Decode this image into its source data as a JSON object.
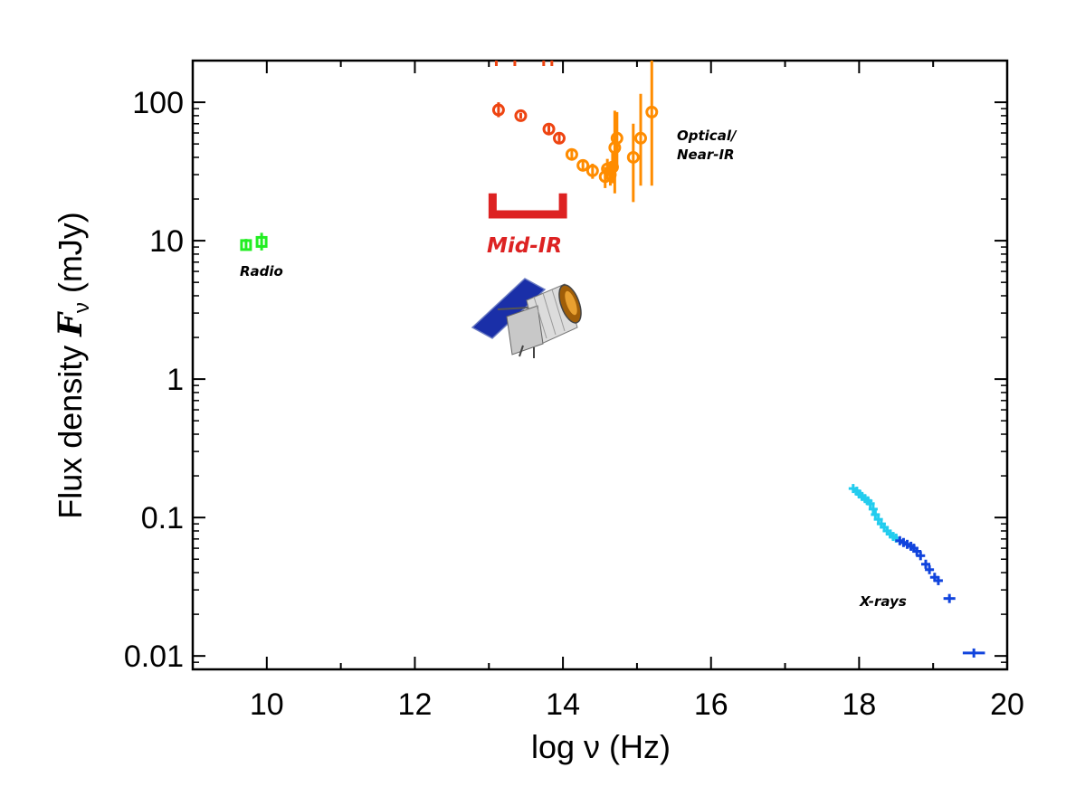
{
  "chart_data": {
    "type": "scatter",
    "x_label": "log ν (Hz)",
    "y_label_prefix": "Flux  density ",
    "y_label_symbol": "F",
    "y_label_sub": "ν",
    "y_label_suffix": " (mJy)",
    "x_scale": "linear",
    "y_scale": "log",
    "xlim": [
      9,
      20
    ],
    "ylim": [
      0.008,
      200
    ],
    "x_ticks": [
      10,
      12,
      14,
      16,
      18,
      20
    ],
    "x_tick_labels": [
      "10",
      "12",
      "14",
      "16",
      "18",
      "20"
    ],
    "y_ticks": [
      0.01,
      0.1,
      1,
      10,
      100
    ],
    "y_tick_labels": [
      "0.01",
      "0.1",
      "1",
      "10",
      "100"
    ],
    "grid": false,
    "legend": "none",
    "annotations": {
      "radio": "Radio",
      "optical_line1": "Optical/",
      "optical_line2": "Near-IR",
      "mid_ir": "Mid-IR",
      "xrays": "X-rays"
    },
    "colors": {
      "radio": "#22ee22",
      "optical_red": "#ee4411",
      "optical_orange": "#ff8c00",
      "mid_ir": "#dd2222",
      "xray_light": "#22ccee",
      "xray_dark": "#1144dd"
    },
    "mid_ir_range": {
      "x_start": 13.05,
      "x_end": 14.0,
      "y": 15.5,
      "y_top": 22
    },
    "series": [
      {
        "marker": "square",
        "color_key": "radio",
        "points": [
          {
            "x": 9.72,
            "y": 9.3,
            "yerr_lo": 0.8,
            "yerr_hi": 1.0
          },
          {
            "x": 9.93,
            "y": 9.8,
            "yerr_lo": 1.3,
            "yerr_hi": 1.6
          }
        ]
      },
      {
        "marker": "circle",
        "color_key": "optical_red",
        "points": [
          {
            "x": 13.13,
            "y": 88,
            "yerr_lo": 10,
            "yerr_hi": 12
          },
          {
            "x": 13.43,
            "y": 80,
            "yerr_lo": 4,
            "yerr_hi": 4
          },
          {
            "x": 13.81,
            "y": 64,
            "yerr_lo": 4,
            "yerr_hi": 4
          },
          {
            "x": 13.95,
            "y": 55,
            "yerr_lo": 4,
            "yerr_hi": 4
          }
        ]
      },
      {
        "marker": "circle",
        "color_key": "optical_orange",
        "points": [
          {
            "x": 14.12,
            "y": 42,
            "yerr_lo": 3,
            "yerr_hi": 3
          },
          {
            "x": 14.27,
            "y": 35,
            "yerr_lo": 3,
            "yerr_hi": 3
          },
          {
            "x": 14.4,
            "y": 32,
            "yerr_lo": 4,
            "yerr_hi": 4
          },
          {
            "x": 14.57,
            "y": 29,
            "yerr_lo": 5,
            "yerr_hi": 5
          },
          {
            "x": 14.6,
            "y": 33,
            "yerr_lo": 5,
            "yerr_hi": 6
          },
          {
            "x": 14.64,
            "y": 30,
            "yerr_lo": 5,
            "yerr_hi": 6
          },
          {
            "x": 14.67,
            "y": 34,
            "yerr_lo": 8,
            "yerr_hi": 10
          },
          {
            "x": 14.7,
            "y": 47,
            "yerr_lo": 25,
            "yerr_hi": 40
          },
          {
            "x": 14.73,
            "y": 55,
            "yerr_lo": 22,
            "yerr_hi": 30
          },
          {
            "x": 14.95,
            "y": 40,
            "yerr_lo": 21,
            "yerr_hi": 30
          },
          {
            "x": 15.05,
            "y": 55,
            "yerr_lo": 30,
            "yerr_hi": 60
          },
          {
            "x": 15.2,
            "y": 85,
            "yerr_lo": 60,
            "yerr_hi": 200
          }
        ]
      },
      {
        "marker": "uparrow",
        "color_key": "optical_red",
        "points": [
          {
            "x": 13.1,
            "y": 200
          },
          {
            "x": 13.35,
            "y": 200
          },
          {
            "x": 13.74,
            "y": 200
          },
          {
            "x": 13.85,
            "y": 200
          }
        ]
      },
      {
        "marker": "plus",
        "color_key": "xray_light",
        "points": [
          {
            "x": 17.92,
            "y": 0.162
          },
          {
            "x": 17.97,
            "y": 0.155
          },
          {
            "x": 18.0,
            "y": 0.148
          },
          {
            "x": 18.04,
            "y": 0.142
          },
          {
            "x": 18.08,
            "y": 0.137
          },
          {
            "x": 18.12,
            "y": 0.132
          },
          {
            "x": 18.15,
            "y": 0.126
          },
          {
            "x": 18.19,
            "y": 0.115
          },
          {
            "x": 18.22,
            "y": 0.105
          },
          {
            "x": 18.26,
            "y": 0.097
          },
          {
            "x": 18.3,
            "y": 0.09
          },
          {
            "x": 18.34,
            "y": 0.085
          },
          {
            "x": 18.38,
            "y": 0.08
          },
          {
            "x": 18.42,
            "y": 0.076
          },
          {
            "x": 18.46,
            "y": 0.073
          },
          {
            "x": 18.5,
            "y": 0.071
          }
        ]
      },
      {
        "marker": "plus",
        "color_key": "xray_dark",
        "points": [
          {
            "x": 18.55,
            "y": 0.068
          },
          {
            "x": 18.6,
            "y": 0.066
          },
          {
            "x": 18.65,
            "y": 0.064
          },
          {
            "x": 18.7,
            "y": 0.062
          },
          {
            "x": 18.74,
            "y": 0.06
          },
          {
            "x": 18.78,
            "y": 0.057
          },
          {
            "x": 18.83,
            "y": 0.053
          },
          {
            "x": 18.9,
            "y": 0.046
          },
          {
            "x": 18.95,
            "y": 0.042
          },
          {
            "x": 19.02,
            "y": 0.037
          },
          {
            "x": 19.07,
            "y": 0.035
          },
          {
            "x": 19.22,
            "y": 0.026,
            "xerr": 0.08
          },
          {
            "x": 19.55,
            "y": 0.0105,
            "xerr": 0.15
          }
        ]
      }
    ]
  }
}
